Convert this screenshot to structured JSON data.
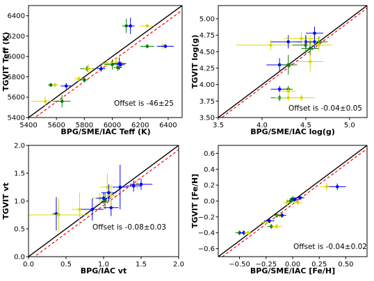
{
  "colors": {
    "blue": "#0000ff",
    "green": "#008000",
    "yellow": "#d9d900",
    "one_to_one": "#000000",
    "fit": "#ff0000"
  },
  "chart_data": [
    {
      "type": "scatter",
      "xlabel": "BPG/SME/IAC Teff (K)",
      "ylabel": "TGVIT Teff (K)",
      "annotation": "Offset is -46±25",
      "xlim": [
        5400,
        6500
      ],
      "ylim": [
        5400,
        6500
      ],
      "xticks": [
        "5400",
        "5600",
        "5800",
        "6000",
        "6200",
        "6400"
      ],
      "yticks": [
        "5400",
        "5600",
        "5800",
        "6000",
        "6200",
        "6400"
      ],
      "one_to_one": true,
      "offset": -46,
      "points": [
        {
          "s": "green",
          "x": 5560,
          "y": 5720,
          "xe": 20,
          "ye": 20
        },
        {
          "s": "yellow",
          "x": 5590,
          "y": 5720,
          "xe": 20,
          "ye": 20
        },
        {
          "s": "yellow",
          "x": 5520,
          "y": 5560,
          "xe": 100,
          "ye": 50
        },
        {
          "s": "green",
          "x": 5640,
          "y": 5560,
          "xe": 60,
          "ye": 60
        },
        {
          "s": "blue",
          "x": 5670,
          "y": 5710,
          "xe": 40,
          "ye": 30
        },
        {
          "s": "yellow",
          "x": 5760,
          "y": 5780,
          "xe": 30,
          "ye": 30
        },
        {
          "s": "green",
          "x": 5800,
          "y": 5770,
          "xe": 25,
          "ye": 25
        },
        {
          "s": "green",
          "x": 5820,
          "y": 5880,
          "xe": 50,
          "ye": 30
        },
        {
          "s": "yellow",
          "x": 5830,
          "y": 5880,
          "xe": 30,
          "ye": 40
        },
        {
          "s": "blue",
          "x": 5920,
          "y": 5880,
          "xe": 30,
          "ye": 30
        },
        {
          "s": "yellow",
          "x": 5960,
          "y": 5930,
          "xe": 30,
          "ye": 30
        },
        {
          "s": "green",
          "x": 6000,
          "y": 5920,
          "xe": 60,
          "ye": 50
        },
        {
          "s": "yellow",
          "x": 6030,
          "y": 5940,
          "xe": 50,
          "ye": 50
        },
        {
          "s": "green",
          "x": 6040,
          "y": 5890,
          "xe": 30,
          "ye": 30
        },
        {
          "s": "blue",
          "x": 6050,
          "y": 5930,
          "xe": 50,
          "ye": 60
        },
        {
          "s": "blue",
          "x": 6060,
          "y": 5920,
          "xe": 30,
          "ye": 30
        },
        {
          "s": "green",
          "x": 6100,
          "y": 6300,
          "xe": 30,
          "ye": 70
        },
        {
          "s": "blue",
          "x": 6130,
          "y": 6300,
          "xe": 30,
          "ye": 80
        },
        {
          "s": "green",
          "x": 6250,
          "y": 6100,
          "xe": 50,
          "ye": 20
        },
        {
          "s": "yellow",
          "x": 6250,
          "y": 6300,
          "xe": 50,
          "ye": 20
        },
        {
          "s": "yellow",
          "x": 6360,
          "y": 6100,
          "xe": 30,
          "ye": 30
        },
        {
          "s": "blue",
          "x": 6380,
          "y": 6100,
          "xe": 60,
          "ye": 20
        }
      ]
    },
    {
      "type": "scatter",
      "xlabel": "BPG/SME/IAC log(g)",
      "ylabel": "TGVIT log(g)",
      "annotation": "Offset is -0.04±0.05",
      "xlim": [
        3.5,
        5.2
      ],
      "ylim": [
        3.5,
        5.2
      ],
      "xticks": [
        "3.5",
        "4.0",
        "4.5",
        "5.0"
      ],
      "yticks": [
        "3.50",
        "3.75",
        "4.00",
        "4.25",
        "4.50",
        "4.75",
        "5.00"
      ],
      "one_to_one": true,
      "offset": -0.04,
      "points": [
        {
          "s": "yellow",
          "x": 4.1,
          "y": 4.6,
          "xe": 0.4,
          "ye": 0.08
        },
        {
          "s": "blue",
          "x": 4.2,
          "y": 4.3,
          "xe": 0.15,
          "ye": 0.1
        },
        {
          "s": "blue",
          "x": 4.2,
          "y": 3.93,
          "xe": 0.1,
          "ye": 0.05
        },
        {
          "s": "green",
          "x": 4.2,
          "y": 3.8,
          "xe": 0.1,
          "ye": 0.05
        },
        {
          "s": "yellow",
          "x": 4.3,
          "y": 3.8,
          "xe": 0.15,
          "ye": 0.05
        },
        {
          "s": "green",
          "x": 4.3,
          "y": 3.93,
          "xe": 0.05,
          "ye": 0.05
        },
        {
          "s": "yellow",
          "x": 4.3,
          "y": 3.9,
          "xe": 0.08,
          "ye": 0.05
        },
        {
          "s": "blue",
          "x": 4.3,
          "y": 4.65,
          "xe": 0.2,
          "ye": 0.1
        },
        {
          "s": "green",
          "x": 4.3,
          "y": 4.3,
          "xe": 0.1,
          "ye": 0.15
        },
        {
          "s": "yellow",
          "x": 4.45,
          "y": 3.8,
          "xe": 0.15,
          "ye": 0.05
        },
        {
          "s": "yellow",
          "x": 4.45,
          "y": 4.7,
          "xe": 0.2,
          "ye": 0.1
        },
        {
          "s": "green",
          "x": 4.5,
          "y": 4.6,
          "xe": 0.15,
          "ye": 0.15
        },
        {
          "s": "blue",
          "x": 4.5,
          "y": 4.65,
          "xe": 0.1,
          "ye": 0.1
        },
        {
          "s": "yellow",
          "x": 4.55,
          "y": 4.35,
          "xe": 0.15,
          "ye": 0.15
        },
        {
          "s": "yellow",
          "x": 4.55,
          "y": 4.65,
          "xe": 0.1,
          "ye": 0.1
        },
        {
          "s": "green",
          "x": 4.55,
          "y": 4.55,
          "xe": 0.1,
          "ye": 0.1
        },
        {
          "s": "blue",
          "x": 4.6,
          "y": 4.78,
          "xe": 0.1,
          "ye": 0.1
        },
        {
          "s": "blue",
          "x": 4.6,
          "y": 4.65,
          "xe": 0.1,
          "ye": 0.1
        },
        {
          "s": "green",
          "x": 4.65,
          "y": 4.65,
          "xe": 0.1,
          "ye": 0.08
        },
        {
          "s": "yellow",
          "x": 4.65,
          "y": 4.6,
          "xe": 0.15,
          "ye": 0.1
        }
      ]
    },
    {
      "type": "scatter",
      "xlabel": "BPG/IAC vt",
      "ylabel": "TGVIT vt",
      "annotation": "Offset is -0.08±0.03",
      "xlim": [
        0.0,
        2.0
      ],
      "ylim": [
        0.0,
        2.0
      ],
      "xticks": [
        "0.0",
        "0.5",
        "1.0",
        "1.5",
        "2.0"
      ],
      "yticks": [
        "0.0",
        "0.5",
        "1.0",
        "1.5",
        "2.0"
      ],
      "one_to_one": true,
      "offset": -0.08,
      "points": [
        {
          "s": "blue",
          "x": 0.37,
          "y": 0.77,
          "xe": 0.05,
          "ye": 0.3
        },
        {
          "s": "yellow",
          "x": 0.4,
          "y": 0.75,
          "xe": 0.4,
          "ye": 0.3
        },
        {
          "s": "yellow",
          "x": 0.68,
          "y": 0.85,
          "xe": 0.1,
          "ye": 0.3
        },
        {
          "s": "blue",
          "x": 0.85,
          "y": 0.85,
          "xe": 0.15,
          "ye": 0.2
        },
        {
          "s": "yellow",
          "x": 0.95,
          "y": 1.05,
          "xe": 0.1,
          "ye": 0.1
        },
        {
          "s": "blue",
          "x": 1.0,
          "y": 1.05,
          "xe": 0.1,
          "ye": 0.1
        },
        {
          "s": "green",
          "x": 1.02,
          "y": 1.0,
          "xe": 0.05,
          "ye": 0.15
        },
        {
          "s": "yellow",
          "x": 1.05,
          "y": 1.25,
          "xe": 0.1,
          "ye": 0.25
        },
        {
          "s": "blue",
          "x": 1.07,
          "y": 1.15,
          "xe": 0.1,
          "ye": 0.15
        },
        {
          "s": "blue",
          "x": 1.1,
          "y": 0.88,
          "xe": 0.1,
          "ye": 0.15
        },
        {
          "s": "yellow",
          "x": 1.1,
          "y": 1.1,
          "xe": 0.1,
          "ye": 0.2
        },
        {
          "s": "blue",
          "x": 1.22,
          "y": 1.25,
          "xe": 0.1,
          "ye": 0.4
        },
        {
          "s": "blue",
          "x": 1.4,
          "y": 1.27,
          "xe": 0.1,
          "ye": 0.1
        },
        {
          "s": "yellow",
          "x": 1.45,
          "y": 1.3,
          "xe": 0.1,
          "ye": 0.1
        },
        {
          "s": "blue",
          "x": 1.5,
          "y": 1.3,
          "xe": 0.15,
          "ye": 0.1
        }
      ]
    },
    {
      "type": "scatter",
      "xlabel": "BPG/SME/IAC [Fe/H]",
      "ylabel": "TGVIT [Fe/H]",
      "annotation": "Offset is -0.04±0.02",
      "xlim": [
        -0.7,
        0.7
      ],
      "ylim": [
        -0.7,
        0.7
      ],
      "xticks": [
        "−0.50",
        "−0.25",
        "0.00",
        "0.25",
        "0.50"
      ],
      "xtickvals": [
        -0.5,
        -0.25,
        0.0,
        0.25,
        0.5
      ],
      "yticks": [
        "−0.6",
        "−0.4",
        "−0.2",
        "0.0",
        "0.2",
        "0.4",
        "0.6"
      ],
      "ytickvals": [
        -0.6,
        -0.4,
        -0.2,
        0.0,
        0.2,
        0.4,
        0.6
      ],
      "one_to_one": true,
      "offset": -0.04,
      "points": [
        {
          "s": "green",
          "x": -0.5,
          "y": -0.4,
          "xe": 0.04,
          "ye": 0.03
        },
        {
          "s": "blue",
          "x": -0.46,
          "y": -0.4,
          "xe": 0.04,
          "ye": 0.03
        },
        {
          "s": "yellow",
          "x": -0.42,
          "y": -0.4,
          "xe": 0.04,
          "ye": 0.03
        },
        {
          "s": "yellow",
          "x": -0.25,
          "y": -0.27,
          "xe": 0.05,
          "ye": 0.03
        },
        {
          "s": "blue",
          "x": -0.22,
          "y": -0.25,
          "xe": 0.05,
          "ye": 0.03
        },
        {
          "s": "green",
          "x": -0.2,
          "y": -0.32,
          "xe": 0.04,
          "ye": 0.03
        },
        {
          "s": "yellow",
          "x": -0.15,
          "y": -0.32,
          "xe": 0.05,
          "ye": 0.03
        },
        {
          "s": "green",
          "x": -0.15,
          "y": -0.18,
          "xe": 0.04,
          "ye": 0.03
        },
        {
          "s": "yellow",
          "x": -0.12,
          "y": -0.18,
          "xe": 0.04,
          "ye": 0.03
        },
        {
          "s": "blue",
          "x": -0.1,
          "y": -0.18,
          "xe": 0.04,
          "ye": 0.03
        },
        {
          "s": "yellow",
          "x": -0.05,
          "y": -0.02,
          "xe": 0.04,
          "ye": 0.05
        },
        {
          "s": "green",
          "x": -0.02,
          "y": 0.0,
          "xe": 0.04,
          "ye": 0.03
        },
        {
          "s": "green",
          "x": 0.0,
          "y": 0.03,
          "xe": 0.03,
          "ye": 0.03
        },
        {
          "s": "blue",
          "x": 0.02,
          "y": 0.02,
          "xe": 0.04,
          "ye": 0.03
        },
        {
          "s": "yellow",
          "x": 0.05,
          "y": -0.02,
          "xe": 0.04,
          "ye": 0.03
        },
        {
          "s": "blue",
          "x": 0.07,
          "y": 0.04,
          "xe": 0.04,
          "ye": 0.03
        },
        {
          "s": "yellow",
          "x": 0.32,
          "y": 0.18,
          "xe": 0.06,
          "ye": 0.05
        },
        {
          "s": "blue",
          "x": 0.42,
          "y": 0.18,
          "xe": 0.08,
          "ye": 0.04
        }
      ]
    }
  ]
}
